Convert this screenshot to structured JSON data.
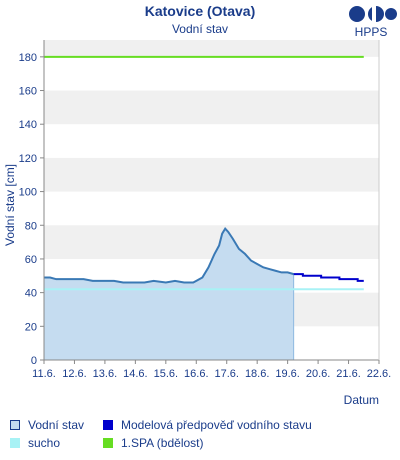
{
  "chart_data": {
    "type": "area",
    "title": "Katovice (Otava)",
    "subtitle": "Vodní stav",
    "ylabel": "Vodní stav [cm]",
    "xlabel": "Datum",
    "ylim": [
      0,
      190
    ],
    "yticks": [
      0,
      20,
      40,
      60,
      80,
      100,
      120,
      140,
      160,
      180
    ],
    "x_tick_labels": [
      "11.6.",
      "12.6.",
      "13.6.",
      "14.6.",
      "15.6.",
      "16.6.",
      "17.6.",
      "18.6.",
      "19.6.",
      "20.6.",
      "21.6.",
      "22.6."
    ],
    "x_unit": "day",
    "xlim": [
      11.0,
      22.0
    ],
    "grid": "alternating horizontal bands",
    "series": [
      {
        "name": "Vodní stav",
        "kind": "area",
        "color": "#3a79b5",
        "fill": "#c5dcf0",
        "x": [
          11.0,
          11.2,
          11.4,
          11.7,
          12.0,
          12.3,
          12.6,
          13.0,
          13.3,
          13.6,
          14.0,
          14.3,
          14.6,
          15.0,
          15.3,
          15.6,
          15.9,
          16.0,
          16.2,
          16.4,
          16.6,
          16.75,
          16.85,
          16.95,
          17.05,
          17.2,
          17.4,
          17.6,
          17.8,
          18.0,
          18.2,
          18.4,
          18.6,
          18.8,
          19.0,
          19.2
        ],
        "values": [
          49,
          49,
          48,
          48,
          48,
          48,
          47,
          47,
          47,
          46,
          46,
          46,
          47,
          46,
          47,
          46,
          46,
          47,
          49,
          55,
          63,
          68,
          75,
          78,
          76,
          72,
          66,
          63,
          59,
          57,
          55,
          54,
          53,
          52,
          52,
          51
        ]
      },
      {
        "name": "Modelová předpověď vodního stavu",
        "kind": "step",
        "color": "#0000cc",
        "x": [
          19.2,
          19.5,
          19.8,
          20.1,
          20.4,
          20.7,
          21.0,
          21.3,
          21.5
        ],
        "values": [
          51,
          50,
          50,
          49,
          49,
          48,
          48,
          47,
          47
        ]
      },
      {
        "name": "sucho",
        "kind": "line",
        "color": "#a8f2f5",
        "x": [
          11.0,
          21.5
        ],
        "values": [
          42,
          42
        ]
      },
      {
        "name": "1.SPA (bdělost)",
        "kind": "line",
        "color": "#66dd22",
        "x": [
          11.0,
          21.5
        ],
        "values": [
          180,
          180
        ]
      }
    ]
  },
  "logo": {
    "text": "HPPS",
    "color": "#1a3c8a"
  },
  "legend": {
    "items": [
      {
        "label": "Vodní stav",
        "color": "#c5dcf0",
        "border": "#1a3c8a"
      },
      {
        "label": "Modelová předpověď vodního stavu",
        "color": "#0000cc",
        "border": "#0000cc"
      },
      {
        "label": "sucho",
        "color": "#a8f2f5",
        "border": "#a8f2f5"
      },
      {
        "label": "1.SPA (bdělost)",
        "color": "#66dd22",
        "border": "#66dd22"
      }
    ]
  },
  "colors": {
    "text": "#1a3c8a",
    "band": "#f0f0f0",
    "axis": "#888888"
  }
}
